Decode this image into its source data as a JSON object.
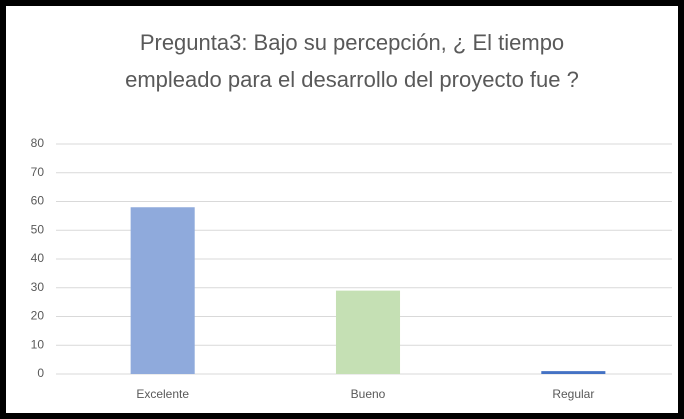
{
  "chart_data": {
    "type": "bar",
    "title": "Pregunta3: Bajo su percepción, ¿ El tiempo empleado para el desarrollo del proyecto fue ?",
    "categories": [
      "Excelente",
      "Bueno",
      "Regular"
    ],
    "values": [
      58,
      29,
      1
    ],
    "colors": [
      "#8faadc",
      "#c5e0b4",
      "#4472c4"
    ],
    "ylim": [
      0,
      80
    ],
    "yticks": [
      0,
      10,
      20,
      30,
      40,
      50,
      60,
      70,
      80
    ],
    "grid": true
  }
}
